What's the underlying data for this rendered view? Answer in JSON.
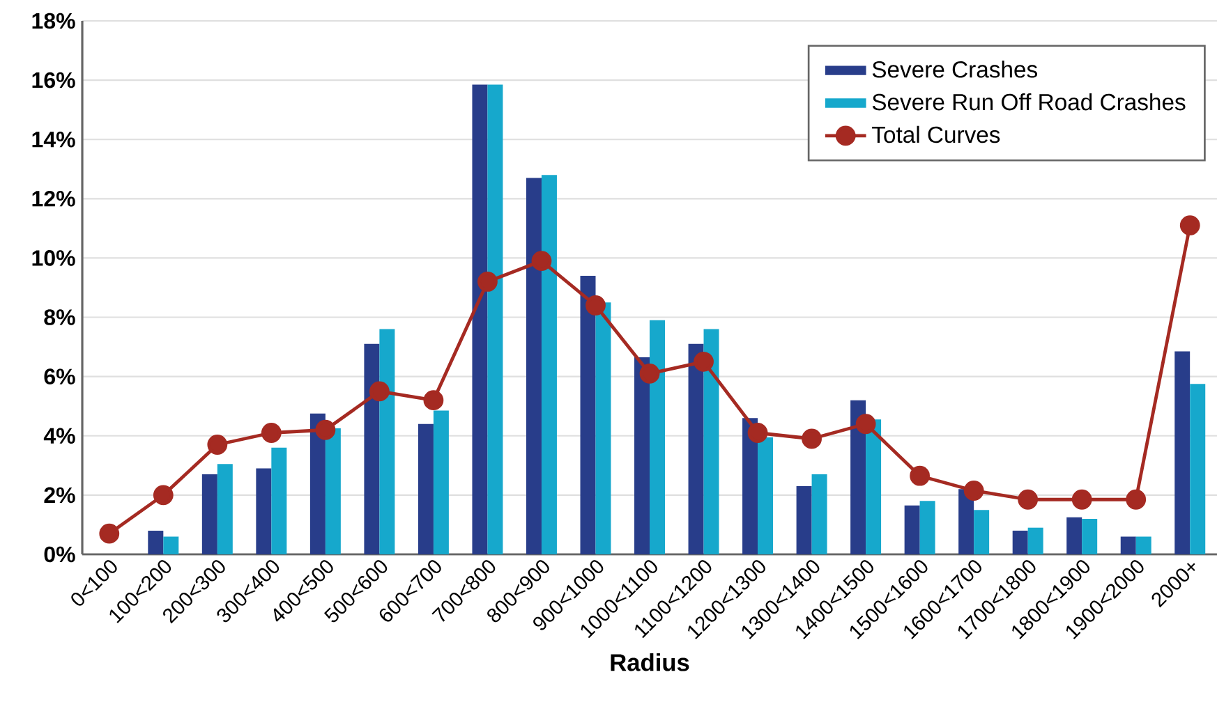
{
  "chart_data": {
    "type": "bar",
    "xlabel": "Radius",
    "categories": [
      "0<100",
      "100<200",
      "200<300",
      "300<400",
      "400<500",
      "500<600",
      "600<700",
      "700<800",
      "800<900",
      "900<1000",
      "1000<1100",
      "1100<1200",
      "1200<1300",
      "1300<1400",
      "1400<1500",
      "1500<1600",
      "1600<1700",
      "1700<1800",
      "1800<1900",
      "1900<2000",
      "2000+"
    ],
    "series": [
      {
        "name": "Severe Crashes",
        "color": "#283d8a",
        "values": [
          0,
          0.8,
          2.7,
          2.9,
          4.75,
          7.1,
          4.4,
          15.85,
          12.7,
          9.4,
          6.65,
          7.1,
          4.6,
          2.3,
          5.2,
          1.65,
          2.2,
          0.8,
          1.25,
          0.6,
          6.85
        ]
      },
      {
        "name": "Severe Run Off Road Crashes",
        "color": "#16a8cc",
        "values": [
          0,
          0.6,
          3.05,
          3.6,
          4.25,
          7.6,
          4.85,
          15.85,
          12.8,
          8.5,
          7.9,
          7.6,
          3.95,
          2.7,
          4.55,
          1.8,
          1.5,
          0.9,
          1.2,
          0.6,
          5.75
        ]
      },
      {
        "name": "Total Curves",
        "type": "line",
        "color": "#a52a22",
        "marker": "circle",
        "values": [
          0.7,
          2.0,
          3.7,
          4.1,
          4.2,
          5.5,
          5.2,
          9.2,
          9.9,
          8.4,
          6.1,
          6.5,
          4.1,
          3.9,
          4.4,
          2.65,
          2.15,
          1.85,
          1.85,
          1.85,
          11.1
        ]
      }
    ],
    "ylim": [
      0,
      18
    ],
    "yticks": [
      {
        "value": 0,
        "label": "0%"
      },
      {
        "value": 2,
        "label": "2%"
      },
      {
        "value": 4,
        "label": "4%"
      },
      {
        "value": 6,
        "label": "6%"
      },
      {
        "value": 8,
        "label": "8%"
      },
      {
        "value": 10,
        "label": "10%"
      },
      {
        "value": 12,
        "label": "12%"
      },
      {
        "value": 14,
        "label": "14%"
      },
      {
        "value": 16,
        "label": "16%"
      },
      {
        "value": 18,
        "label": "18%"
      }
    ],
    "grid": "y",
    "legend": "top right"
  }
}
